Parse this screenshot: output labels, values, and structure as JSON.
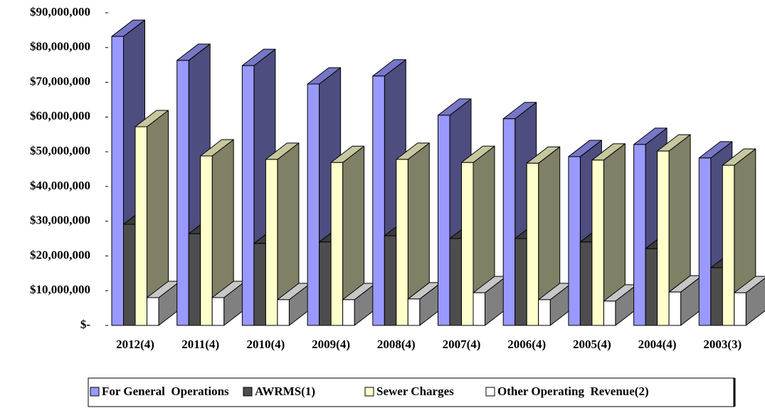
{
  "chart_data": {
    "type": "bar3d",
    "categories": [
      "2012(4)",
      "2011(4)",
      "2010(4)",
      "2009(4)",
      "2008(4)",
      "2007(4)",
      "2006(4)",
      "2005(4)",
      "2004(4)",
      "2003(3)"
    ],
    "series": [
      {
        "name": "For General  Operations",
        "color": "#9999ff",
        "values": [
          83200000,
          76300000,
          74800000,
          69500000,
          71800000,
          60500000,
          59500000,
          48600000,
          52100000,
          48200000
        ]
      },
      {
        "name": "AWRMS(1)",
        "color": "#4d4d4d",
        "values": [
          29100000,
          26400000,
          23600000,
          24000000,
          25800000,
          25000000,
          25000000,
          24000000,
          22100000,
          16600000
        ]
      },
      {
        "name": "Sewer Charges",
        "color": "#ffffcc",
        "values": [
          57200000,
          48800000,
          47800000,
          46900000,
          47800000,
          46900000,
          46700000,
          47600000,
          50200000,
          46100000
        ]
      },
      {
        "name": "Other Operating  Revenue(2)",
        "color": "#ffffff",
        "values": [
          8000000,
          8000000,
          7400000,
          7400000,
          7600000,
          9400000,
          7400000,
          7000000,
          9600000,
          9400000
        ]
      }
    ],
    "ylim": [
      0,
      90000000
    ],
    "yticks": [
      {
        "value": 0,
        "label": "$-"
      },
      {
        "value": 10000000,
        "label": "$10,000,000"
      },
      {
        "value": 20000000,
        "label": "$20,000,000"
      },
      {
        "value": 30000000,
        "label": "$30,000,000"
      },
      {
        "value": 40000000,
        "label": "$40,000,000"
      },
      {
        "value": 50000000,
        "label": "$50,000,000"
      },
      {
        "value": 60000000,
        "label": "$60,000,000"
      },
      {
        "value": 70000000,
        "label": "$70,000,000"
      },
      {
        "value": 80000000,
        "label": "$80,000,000"
      },
      {
        "value": 90000000,
        "label": "$90,000,000"
      }
    ],
    "legend": "bottom"
  }
}
